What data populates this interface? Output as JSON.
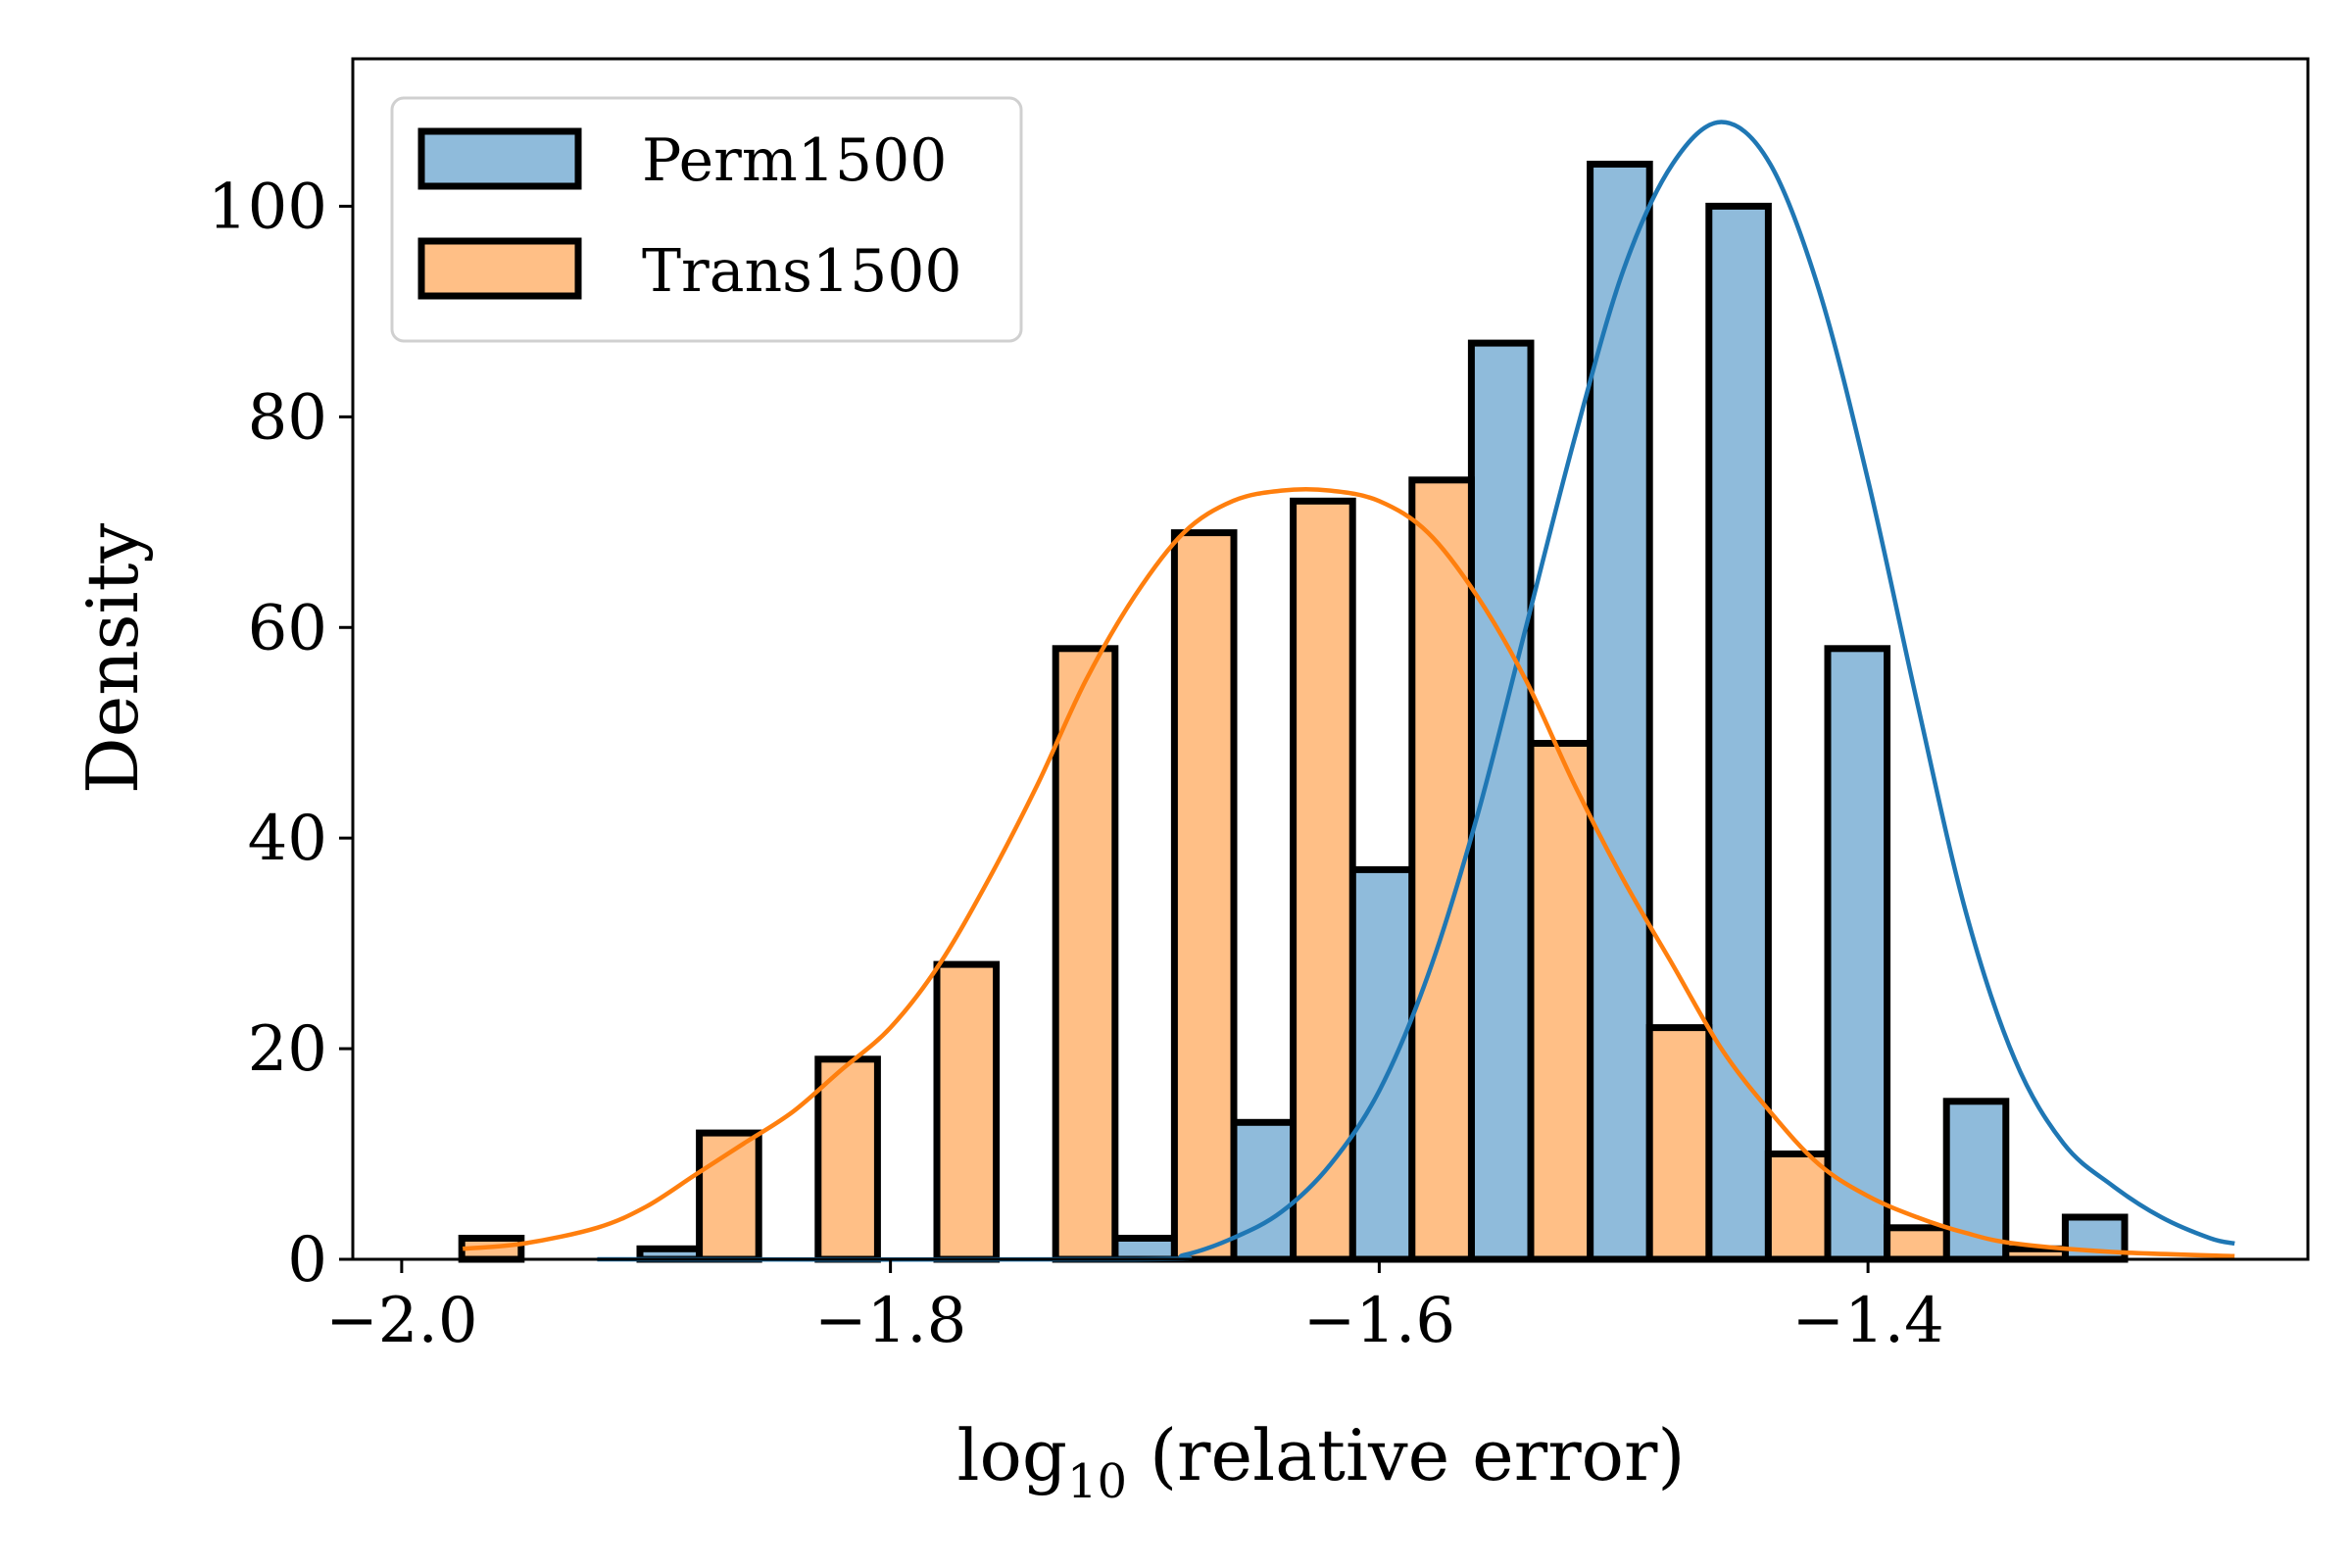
{
  "chart_data": {
    "type": "bar",
    "xlabel_main": "log",
    "xlabel_sub": "10",
    "xlabel_rest": " (relative error)",
    "ylabel": "Density",
    "xlim": [
      -2.02,
      -1.22
    ],
    "ylim": [
      0,
      114
    ],
    "xticks": [
      {
        "value": -2.0,
        "label": "−2.0"
      },
      {
        "value": -1.8,
        "label": "−1.8"
      },
      {
        "value": -1.6,
        "label": "−1.6"
      },
      {
        "value": -1.4,
        "label": "−1.4"
      }
    ],
    "yticks": [
      {
        "value": 0,
        "label": "0"
      },
      {
        "value": 20,
        "label": "20"
      },
      {
        "value": 40,
        "label": "40"
      },
      {
        "value": 60,
        "label": "60"
      },
      {
        "value": 80,
        "label": "80"
      },
      {
        "value": 100,
        "label": "100"
      }
    ],
    "grid": false,
    "legend_position": "top-left",
    "bin_edges": [
      -1.9754,
      -1.9268,
      -1.8782,
      -1.8296,
      -1.781,
      -1.7324,
      -1.6838,
      -1.6352,
      -1.5866,
      -1.538,
      -1.4894,
      -1.4408,
      -1.3922,
      -1.3436,
      -1.295,
      -1.2464
    ],
    "series": [
      {
        "name": "Perm1500",
        "color": "#1f77b4",
        "fill": "#8fbbdb",
        "values": [
          0,
          1,
          0,
          0,
          0,
          2,
          13,
          37,
          87,
          104,
          100,
          58,
          15,
          4,
          0
        ],
        "kde": [
          [
            -1.92,
            0
          ],
          [
            -1.7,
            0
          ],
          [
            -1.68,
            0.4
          ],
          [
            -1.66,
            2
          ],
          [
            -1.64,
            4.5
          ],
          [
            -1.62,
            9
          ],
          [
            -1.6,
            16
          ],
          [
            -1.58,
            27
          ],
          [
            -1.56,
            42
          ],
          [
            -1.54,
            60
          ],
          [
            -1.52,
            78
          ],
          [
            -1.5,
            94
          ],
          [
            -1.48,
            104
          ],
          [
            -1.46,
            108
          ],
          [
            -1.44,
            104
          ],
          [
            -1.42,
            92
          ],
          [
            -1.4,
            74
          ],
          [
            -1.38,
            53
          ],
          [
            -1.36,
            33
          ],
          [
            -1.34,
            19
          ],
          [
            -1.32,
            11
          ],
          [
            -1.3,
            7
          ],
          [
            -1.28,
            4
          ],
          [
            -1.26,
            2
          ],
          [
            -1.25,
            1.5
          ]
        ]
      },
      {
        "name": "Trans1500",
        "color": "#ff7f0e",
        "fill": "#ffbf86",
        "values": [
          2,
          0,
          12,
          19,
          28,
          58,
          69,
          72,
          74,
          49,
          22,
          10,
          3,
          1,
          0
        ],
        "kde": [
          [
            -1.975,
            1
          ],
          [
            -1.95,
            1.5
          ],
          [
            -1.92,
            3
          ],
          [
            -1.9,
            5
          ],
          [
            -1.88,
            8
          ],
          [
            -1.86,
            11
          ],
          [
            -1.84,
            14
          ],
          [
            -1.82,
            18
          ],
          [
            -1.8,
            22
          ],
          [
            -1.78,
            28
          ],
          [
            -1.76,
            36
          ],
          [
            -1.74,
            45
          ],
          [
            -1.72,
            55
          ],
          [
            -1.7,
            63
          ],
          [
            -1.68,
            69
          ],
          [
            -1.66,
            72
          ],
          [
            -1.64,
            73
          ],
          [
            -1.62,
            73
          ],
          [
            -1.6,
            72
          ],
          [
            -1.58,
            69
          ],
          [
            -1.56,
            63
          ],
          [
            -1.54,
            55
          ],
          [
            -1.52,
            45
          ],
          [
            -1.5,
            36
          ],
          [
            -1.48,
            28
          ],
          [
            -1.46,
            20
          ],
          [
            -1.44,
            14
          ],
          [
            -1.42,
            9
          ],
          [
            -1.4,
            6
          ],
          [
            -1.38,
            4
          ],
          [
            -1.36,
            2.5
          ],
          [
            -1.34,
            1.5
          ],
          [
            -1.3,
            0.7
          ],
          [
            -1.25,
            0.3
          ]
        ]
      }
    ]
  }
}
